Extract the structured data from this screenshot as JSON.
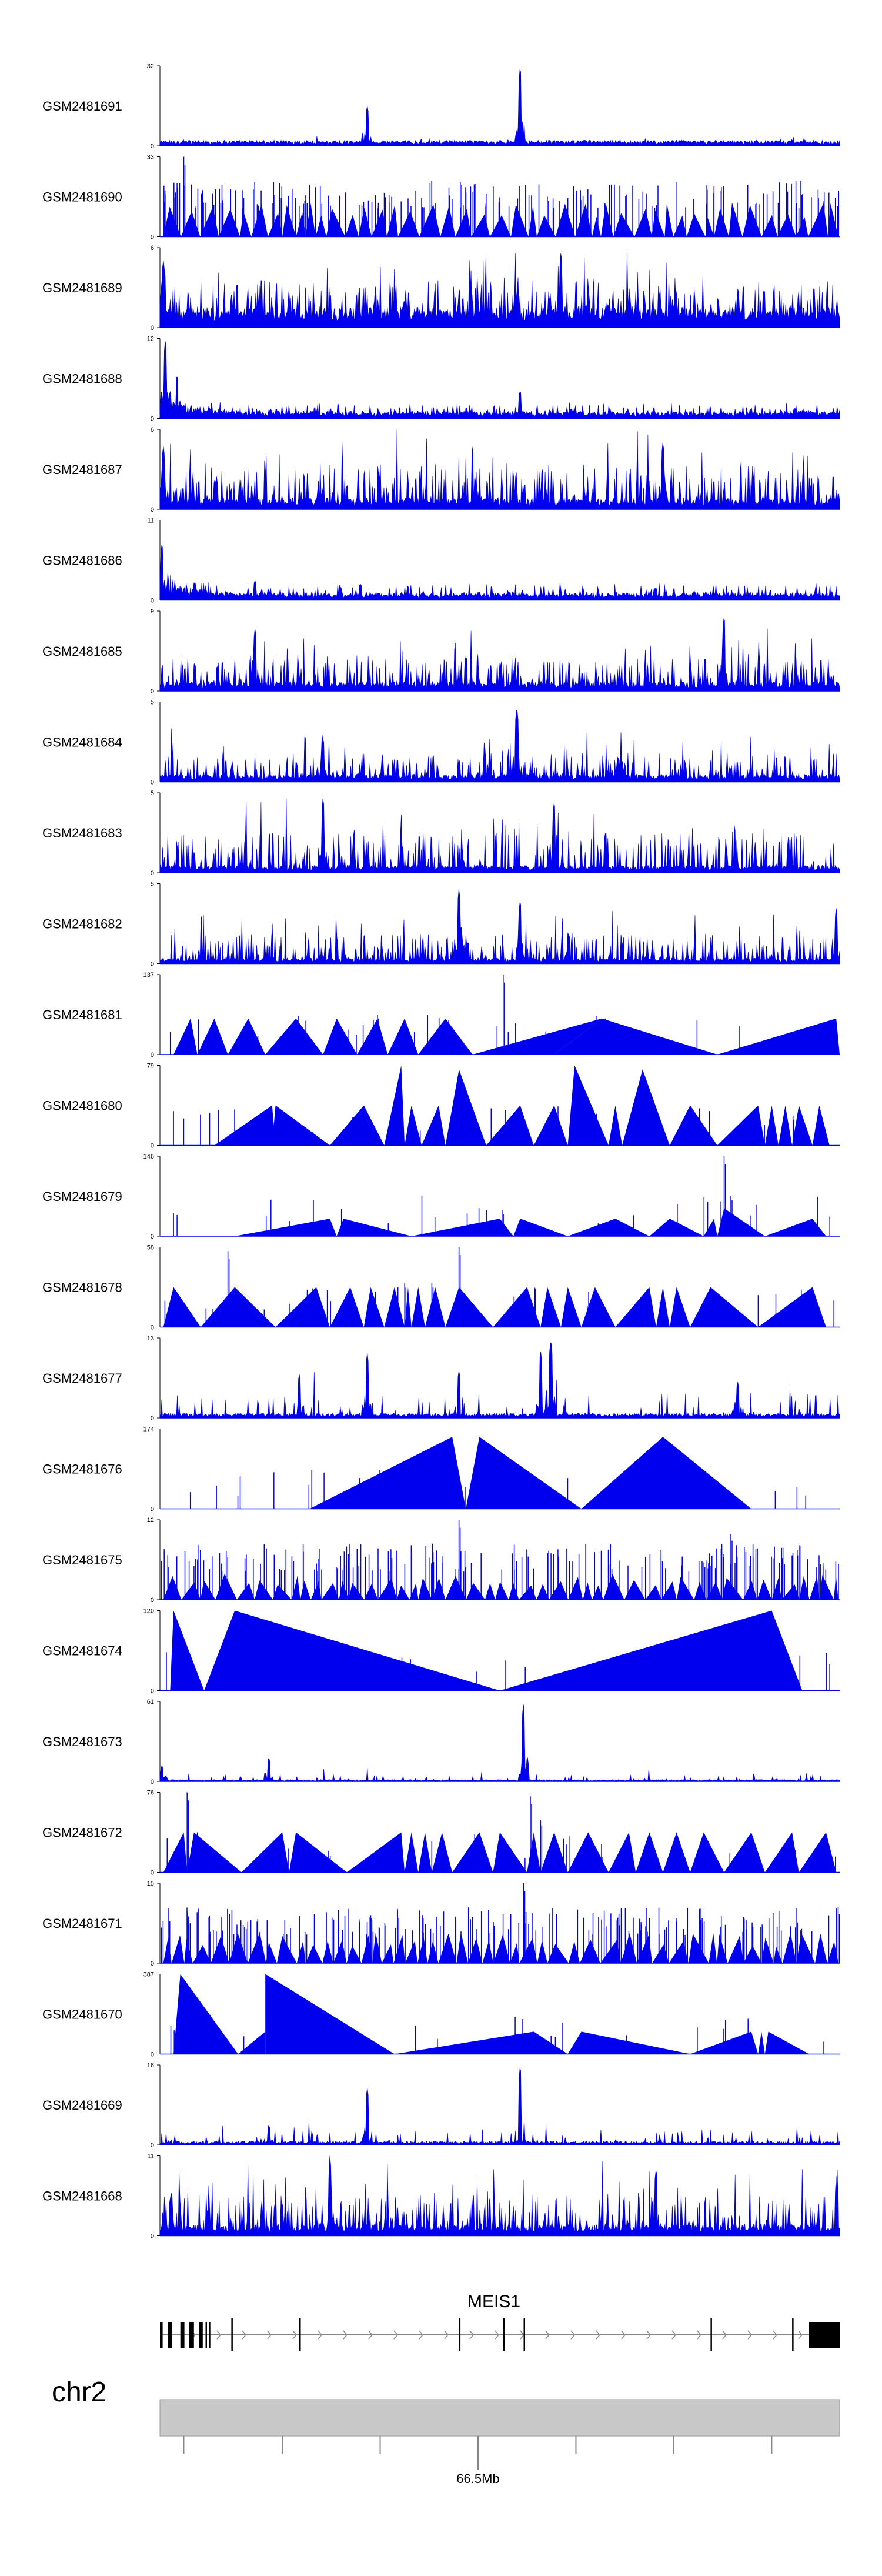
{
  "chart_data": {
    "type": "area",
    "series_color": "#0000ee",
    "tracks": [
      {
        "name": "GSM2481691",
        "ymax": 32,
        "ymin": 0,
        "pattern": "peaky",
        "baseline": 0.06,
        "noise": 0.05,
        "peaks": [
          {
            "pos": 0.305,
            "h": 0.5
          },
          {
            "pos": 0.53,
            "h": 1.0
          }
        ]
      },
      {
        "name": "GSM2481690",
        "ymax": 33,
        "ymin": 0,
        "pattern": "triangles-dense",
        "tri_h": 0.33,
        "peaks": [
          {
            "pos": 0.035,
            "h": 1.0
          },
          {
            "pos": 0.33,
            "h": 0.55
          },
          {
            "pos": 0.57,
            "h": 0.5
          }
        ]
      },
      {
        "name": "GSM2481689",
        "ymax": 6,
        "ymin": 0,
        "pattern": "dense",
        "baseline": 0.22,
        "noise": 0.45,
        "peaks": [
          {
            "pos": 0.005,
            "h": 0.85
          },
          {
            "pos": 0.59,
            "h": 0.95
          }
        ]
      },
      {
        "name": "GSM2481688",
        "ymax": 12,
        "ymin": 0,
        "pattern": "decay",
        "baseline": 0.05,
        "noise": 0.14,
        "peaks": [
          {
            "pos": 0.008,
            "h": 1.0
          },
          {
            "pos": 0.025,
            "h": 0.55
          },
          {
            "pos": 0.53,
            "h": 0.35
          }
        ]
      },
      {
        "name": "GSM2481687",
        "ymax": 6,
        "ymin": 0,
        "pattern": "dense",
        "baseline": 0.12,
        "noise": 0.55,
        "peaks": [
          {
            "pos": 0.005,
            "h": 0.8
          },
          {
            "pos": 0.74,
            "h": 0.85
          }
        ]
      },
      {
        "name": "GSM2481686",
        "ymax": 11,
        "ymin": 0,
        "pattern": "decay",
        "baseline": 0.05,
        "noise": 0.16,
        "peaks": [
          {
            "pos": 0.003,
            "h": 0.72
          },
          {
            "pos": 0.14,
            "h": 0.25
          }
        ]
      },
      {
        "name": "GSM2481685",
        "ymax": 9,
        "ymin": 0,
        "pattern": "dense",
        "baseline": 0.1,
        "noise": 0.42,
        "peaks": [
          {
            "pos": 0.14,
            "h": 0.8
          },
          {
            "pos": 0.83,
            "h": 0.95
          }
        ]
      },
      {
        "name": "GSM2481684",
        "ymax": 5,
        "ymin": 0,
        "pattern": "dense",
        "baseline": 0.08,
        "noise": 0.35,
        "peaks": [
          {
            "pos": 0.525,
            "h": 0.95
          },
          {
            "pos": 0.24,
            "h": 0.55
          }
        ]
      },
      {
        "name": "GSM2481683",
        "ymax": 5,
        "ymin": 0,
        "pattern": "dense",
        "baseline": 0.08,
        "noise": 0.55,
        "peaks": [
          {
            "pos": 0.24,
            "h": 0.95
          },
          {
            "pos": 0.58,
            "h": 0.9
          }
        ]
      },
      {
        "name": "GSM2481682",
        "ymax": 5,
        "ymin": 0,
        "pattern": "dense",
        "baseline": 0.06,
        "noise": 0.4,
        "peaks": [
          {
            "pos": 0.44,
            "h": 0.95
          },
          {
            "pos": 0.53,
            "h": 0.8
          },
          {
            "pos": 0.995,
            "h": 0.7
          }
        ]
      },
      {
        "name": "GSM2481681",
        "ymax": 137,
        "ymin": 0,
        "pattern": "triangles",
        "tris": [
          [
            0.02,
            0.055,
            0.045,
            0.45
          ],
          [
            0.055,
            0.1,
            0.08,
            0.45
          ],
          [
            0.1,
            0.155,
            0.13,
            0.45
          ],
          [
            0.155,
            0.24,
            0.2,
            0.45
          ],
          [
            0.24,
            0.29,
            0.26,
            0.45
          ],
          [
            0.29,
            0.335,
            0.32,
            0.45
          ],
          [
            0.335,
            0.38,
            0.36,
            0.45
          ],
          [
            0.38,
            0.46,
            0.42,
            0.45
          ],
          [
            0.46,
            0.58,
            0.65,
            0.45
          ],
          [
            0.58,
            0.82,
            0.65,
            0.45
          ],
          [
            0.82,
            1.0,
            0.995,
            0.45
          ]
        ],
        "spikes": [
          {
            "pos": 0.505,
            "h": 1.0
          },
          {
            "pos": 0.32,
            "h": 0.5
          },
          {
            "pos": 0.655,
            "h": 0.45
          }
        ]
      },
      {
        "name": "GSM2481680",
        "ymax": 79,
        "ymin": 0,
        "pattern": "triangles",
        "tris": [
          [
            0.08,
            0.17,
            0.165,
            0.5
          ],
          [
            0.165,
            0.25,
            0.17,
            0.5
          ],
          [
            0.25,
            0.33,
            0.3,
            0.5
          ],
          [
            0.33,
            0.36,
            0.355,
            1.0
          ],
          [
            0.36,
            0.385,
            0.37,
            0.5
          ],
          [
            0.385,
            0.42,
            0.41,
            0.5
          ],
          [
            0.42,
            0.48,
            0.44,
            0.95
          ],
          [
            0.48,
            0.55,
            0.53,
            0.5
          ],
          [
            0.55,
            0.6,
            0.58,
            0.5
          ],
          [
            0.6,
            0.66,
            0.61,
            1.0
          ],
          [
            0.66,
            0.68,
            0.67,
            0.5
          ],
          [
            0.68,
            0.75,
            0.71,
            0.95
          ],
          [
            0.75,
            0.82,
            0.78,
            0.5
          ],
          [
            0.82,
            0.89,
            0.88,
            0.5
          ],
          [
            0.89,
            0.91,
            0.9,
            0.5
          ],
          [
            0.91,
            0.93,
            0.92,
            0.5
          ],
          [
            0.93,
            0.96,
            0.94,
            0.5
          ],
          [
            0.96,
            0.985,
            0.97,
            0.5
          ]
        ]
      },
      {
        "name": "GSM2481679",
        "ymax": 146,
        "ymin": 0,
        "pattern": "triangles",
        "tris": [
          [
            0.11,
            0.26,
            0.25,
            0.22
          ],
          [
            0.26,
            0.37,
            0.27,
            0.22
          ],
          [
            0.37,
            0.52,
            0.5,
            0.22
          ],
          [
            0.52,
            0.6,
            0.53,
            0.22
          ],
          [
            0.6,
            0.72,
            0.67,
            0.22
          ],
          [
            0.72,
            0.8,
            0.75,
            0.22
          ],
          [
            0.8,
            0.82,
            0.815,
            0.22
          ],
          [
            0.82,
            0.89,
            0.83,
            0.35
          ],
          [
            0.89,
            0.98,
            0.96,
            0.22
          ]
        ],
        "spikes": [
          {
            "pos": 0.83,
            "h": 1.0
          },
          {
            "pos": 0.84,
            "h": 0.5
          }
        ]
      },
      {
        "name": "GSM2481678",
        "ymax": 58,
        "ymin": 0,
        "pattern": "triangles",
        "tris": [
          [
            0.005,
            0.06,
            0.02,
            0.5
          ],
          [
            0.06,
            0.17,
            0.11,
            0.5
          ],
          [
            0.17,
            0.25,
            0.23,
            0.5
          ],
          [
            0.25,
            0.3,
            0.28,
            0.5
          ],
          [
            0.3,
            0.33,
            0.31,
            0.5
          ],
          [
            0.33,
            0.36,
            0.345,
            0.5
          ],
          [
            0.36,
            0.37,
            0.365,
            0.5
          ],
          [
            0.37,
            0.39,
            0.38,
            0.5
          ],
          [
            0.39,
            0.42,
            0.405,
            0.5
          ],
          [
            0.42,
            0.49,
            0.44,
            0.5
          ],
          [
            0.49,
            0.56,
            0.54,
            0.5
          ],
          [
            0.56,
            0.59,
            0.57,
            0.5
          ],
          [
            0.59,
            0.62,
            0.6,
            0.5
          ],
          [
            0.62,
            0.67,
            0.64,
            0.5
          ],
          [
            0.67,
            0.73,
            0.72,
            0.5
          ],
          [
            0.73,
            0.75,
            0.74,
            0.5
          ],
          [
            0.75,
            0.78,
            0.76,
            0.5
          ],
          [
            0.78,
            0.88,
            0.81,
            0.5
          ],
          [
            0.88,
            0.98,
            0.96,
            0.5
          ]
        ],
        "spikes": [
          {
            "pos": 0.1,
            "h": 0.95
          },
          {
            "pos": 0.44,
            "h": 1.0
          },
          {
            "pos": 0.36,
            "h": 0.55
          },
          {
            "pos": 0.4,
            "h": 0.55
          }
        ]
      },
      {
        "name": "GSM2481677",
        "ymax": 13,
        "ymin": 0,
        "pattern": "sparse",
        "baseline": 0.05,
        "noise": 0.18,
        "peaks": [
          {
            "pos": 0.305,
            "h": 0.82
          },
          {
            "pos": 0.44,
            "h": 0.6
          },
          {
            "pos": 0.56,
            "h": 0.85
          },
          {
            "pos": 0.575,
            "h": 1.0
          },
          {
            "pos": 0.205,
            "h": 0.55
          },
          {
            "pos": 0.85,
            "h": 0.45
          }
        ]
      },
      {
        "name": "GSM2481676",
        "ymax": 174,
        "ymin": 0,
        "pattern": "triangles",
        "tris": [
          [
            0.22,
            0.45,
            0.43,
            0.9
          ],
          [
            0.45,
            0.62,
            0.47,
            0.9
          ],
          [
            0.62,
            0.87,
            0.74,
            0.9
          ]
        ]
      },
      {
        "name": "GSM2481675",
        "ymax": 12,
        "ymin": 0,
        "pattern": "triangles-dense",
        "tri_h": 0.25,
        "peaks": [
          {
            "pos": 0.44,
            "h": 1.0
          },
          {
            "pos": 0.84,
            "h": 0.82
          },
          {
            "pos": 0.54,
            "h": 0.6
          }
        ]
      },
      {
        "name": "GSM2481674",
        "ymax": 120,
        "ymin": 0,
        "pattern": "triangles",
        "tris": [
          [
            0.015,
            0.065,
            0.02,
            1.0
          ],
          [
            0.065,
            0.5,
            0.11,
            1.0
          ],
          [
            0.5,
            0.945,
            0.9,
            1.0
          ]
        ]
      },
      {
        "name": "GSM2481673",
        "ymax": 61,
        "ymin": 0,
        "pattern": "sparse",
        "baseline": 0.02,
        "noise": 0.05,
        "peaks": [
          {
            "pos": 0.535,
            "h": 1.0
          },
          {
            "pos": 0.16,
            "h": 0.3
          },
          {
            "pos": 0.003,
            "h": 0.2
          }
        ]
      },
      {
        "name": "GSM2481672",
        "ymax": 76,
        "ymin": 0,
        "pattern": "triangles",
        "tris": [
          [
            0.005,
            0.04,
            0.035,
            0.5
          ],
          [
            0.04,
            0.12,
            0.05,
            0.5
          ],
          [
            0.12,
            0.19,
            0.18,
            0.5
          ],
          [
            0.19,
            0.275,
            0.2,
            0.5
          ],
          [
            0.275,
            0.36,
            0.355,
            0.5
          ],
          [
            0.36,
            0.38,
            0.37,
            0.5
          ],
          [
            0.38,
            0.4,
            0.39,
            0.5
          ],
          [
            0.4,
            0.43,
            0.415,
            0.5
          ],
          [
            0.43,
            0.49,
            0.47,
            0.5
          ],
          [
            0.49,
            0.54,
            0.5,
            0.5
          ],
          [
            0.54,
            0.56,
            0.55,
            0.5
          ],
          [
            0.56,
            0.6,
            0.58,
            0.5
          ],
          [
            0.6,
            0.66,
            0.63,
            0.5
          ],
          [
            0.66,
            0.7,
            0.69,
            0.5
          ],
          [
            0.7,
            0.74,
            0.72,
            0.5
          ],
          [
            0.74,
            0.78,
            0.76,
            0.5
          ],
          [
            0.78,
            0.83,
            0.8,
            0.5
          ],
          [
            0.83,
            0.89,
            0.87,
            0.5
          ],
          [
            0.89,
            0.94,
            0.93,
            0.5
          ],
          [
            0.94,
            0.995,
            0.98,
            0.5
          ]
        ],
        "spikes": [
          {
            "pos": 0.04,
            "h": 1.0
          },
          {
            "pos": 0.055,
            "h": 0.5
          },
          {
            "pos": 0.545,
            "h": 0.95
          },
          {
            "pos": 0.56,
            "h": 0.65
          }
        ]
      },
      {
        "name": "GSM2481671",
        "ymax": 15,
        "ymin": 0,
        "pattern": "triangles-dense",
        "tri_h": 0.3,
        "peaks": [
          {
            "pos": 0.535,
            "h": 1.0
          },
          {
            "pos": 0.04,
            "h": 0.65
          },
          {
            "pos": 0.31,
            "h": 0.6
          }
        ]
      },
      {
        "name": "GSM2481670",
        "ymax": 387,
        "ymin": 0,
        "pattern": "triangles",
        "tris": [
          [
            0.02,
            0.115,
            0.03,
            1.0
          ],
          [
            0.115,
            0.155,
            0.155,
            0.28
          ],
          [
            0.155,
            0.345,
            0.155,
            1.0
          ],
          [
            0.345,
            0.6,
            0.55,
            0.28
          ],
          [
            0.6,
            0.78,
            0.62,
            0.28
          ],
          [
            0.78,
            0.88,
            0.87,
            0.28
          ],
          [
            0.88,
            0.89,
            0.885,
            0.28
          ],
          [
            0.89,
            0.955,
            0.895,
            0.28
          ]
        ]
      },
      {
        "name": "GSM2481669",
        "ymax": 16,
        "ymin": 0,
        "pattern": "sparse",
        "baseline": 0.04,
        "noise": 0.1,
        "peaks": [
          {
            "pos": 0.305,
            "h": 0.72
          },
          {
            "pos": 0.53,
            "h": 1.0
          },
          {
            "pos": 0.16,
            "h": 0.25
          }
        ]
      },
      {
        "name": "GSM2481668",
        "ymax": 11,
        "ymin": 0,
        "pattern": "dense",
        "baseline": 0.12,
        "noise": 0.55,
        "peaks": [
          {
            "pos": 0.25,
            "h": 1.0
          },
          {
            "pos": 0.73,
            "h": 0.85
          }
        ]
      }
    ],
    "gene": {
      "name": "MEIS1",
      "strand": "+",
      "exons": [
        [
          0.0,
          0.004
        ],
        [
          0.012,
          0.018
        ],
        [
          0.03,
          0.036
        ],
        [
          0.043,
          0.05
        ],
        [
          0.058,
          0.063
        ],
        [
          0.067,
          0.068
        ],
        [
          0.072,
          0.074
        ],
        [
          0.105,
          0.107
        ],
        [
          0.205,
          0.207
        ],
        [
          0.44,
          0.442
        ],
        [
          0.505,
          0.507
        ],
        [
          0.535,
          0.537
        ],
        [
          0.81,
          0.812
        ],
        [
          0.93,
          0.932
        ],
        [
          0.955,
          1.0
        ]
      ]
    },
    "ideogram": {
      "chromosome": "chr2",
      "tick_label": "66.5Mb",
      "labelled_tick": 0.468,
      "ticks": [
        0.035,
        0.18,
        0.324,
        0.468,
        0.612,
        0.756,
        0.9
      ]
    }
  }
}
